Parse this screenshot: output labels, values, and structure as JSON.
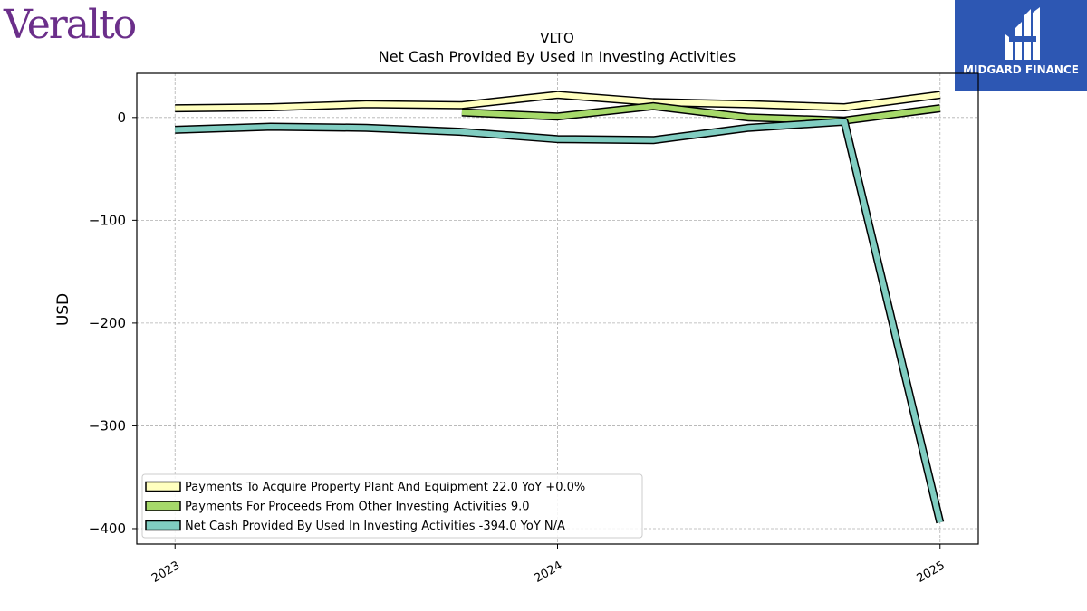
{
  "logos": {
    "left": "Veralto",
    "right": "MIDGARD FINANCE"
  },
  "colors": {
    "ppe": "#ffffbf",
    "other": "#a6d96a",
    "net": "#80cdc1",
    "brand_purple": "#6b2f8a",
    "brand_blue": "#2d57b3"
  },
  "chart_data": {
    "type": "line",
    "title": "VLTO",
    "subtitle": "Net Cash Provided By Used In Investing Activities",
    "ylabel": "USD",
    "xlabel": "",
    "ylim": [
      -415,
      43
    ],
    "xlim": [
      2022.9,
      2025.1
    ],
    "yticks": [
      0,
      -100,
      -200,
      -300,
      -400
    ],
    "ytick_labels": [
      "0",
      "−100",
      "−200",
      "−300",
      "−400"
    ],
    "xticks": [
      2023,
      2024,
      2025
    ],
    "xtick_labels": [
      "2023",
      "2024",
      "2025"
    ],
    "grid": true,
    "legend_position": "lower-left",
    "series": [
      {
        "name": "Payments To Acquire Property Plant And Equipment",
        "legend_label": "Payments To Acquire Property Plant And Equipment  22.0 YoY +0.0%",
        "color": "#ffffbf",
        "x": [
          2023.0,
          2023.25,
          2023.5,
          2023.75,
          2024.0,
          2024.25,
          2024.5,
          2024.75,
          2025.0
        ],
        "y": [
          9,
          10,
          13,
          12,
          22,
          15,
          13,
          10,
          22
        ]
      },
      {
        "name": "Payments For Proceeds From Other Investing Activities",
        "legend_label": "Payments For Proceeds From Other Investing Activities  9.0",
        "color": "#a6d96a",
        "x": [
          2023.75,
          2024.0,
          2024.25,
          2024.5,
          2024.75,
          2025.0
        ],
        "y": [
          5,
          1,
          11,
          0,
          -3,
          9
        ]
      },
      {
        "name": "Net Cash Provided By Used In Investing Activities",
        "legend_label": "Net Cash Provided By Used In Investing Activities  -394.0 YoY N/A",
        "color": "#80cdc1",
        "x": [
          2023.0,
          2023.25,
          2023.5,
          2023.75,
          2024.0,
          2024.25,
          2024.5,
          2024.75,
          2025.0
        ],
        "y": [
          -12,
          -9,
          -10,
          -14,
          -21,
          -22,
          -10,
          -4,
          -394
        ]
      }
    ]
  }
}
